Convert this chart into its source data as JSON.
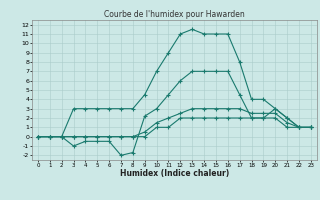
{
  "title": "Courbe de l'humidex pour Hawarden",
  "xlabel": "Humidex (Indice chaleur)",
  "background_color": "#cce8e6",
  "grid_color": "#aaccca",
  "line_color": "#1a7a6e",
  "xlim": [
    -0.5,
    23.5
  ],
  "ylim": [
    -2.5,
    12.5
  ],
  "xticks": [
    0,
    1,
    2,
    3,
    4,
    5,
    6,
    7,
    8,
    9,
    10,
    11,
    12,
    13,
    14,
    15,
    16,
    17,
    18,
    19,
    20,
    21,
    22,
    23
  ],
  "yticks": [
    -2,
    -1,
    0,
    1,
    2,
    3,
    4,
    5,
    6,
    7,
    8,
    9,
    10,
    11,
    12
  ],
  "line1_x": [
    0,
    1,
    2,
    3,
    4,
    5,
    6,
    7,
    8,
    9,
    10,
    11,
    12,
    13,
    14,
    15,
    16,
    17,
    18,
    19,
    20,
    21,
    22,
    23
  ],
  "line1_y": [
    0,
    0,
    0,
    -1,
    -0.5,
    -0.5,
    -0.5,
    -2,
    -1.7,
    2.2,
    3,
    4.5,
    6,
    7,
    7,
    7,
    7,
    4.5,
    2,
    2,
    3,
    2,
    1,
    1
  ],
  "line2_x": [
    0,
    1,
    2,
    3,
    4,
    5,
    6,
    7,
    8,
    9,
    10,
    11,
    12,
    13,
    14,
    15,
    16,
    17,
    18,
    19,
    20,
    21,
    22,
    23
  ],
  "line2_y": [
    0,
    0,
    0,
    3,
    3,
    3,
    3,
    3,
    3,
    4.5,
    7,
    9,
    11,
    11.5,
    11,
    11,
    11,
    8,
    4,
    4,
    3,
    2,
    1,
    1
  ],
  "line3_x": [
    0,
    1,
    2,
    3,
    4,
    5,
    6,
    7,
    8,
    9,
    10,
    11,
    12,
    13,
    14,
    15,
    16,
    17,
    18,
    19,
    20,
    21,
    22,
    23
  ],
  "line3_y": [
    0,
    0,
    0,
    0,
    0,
    0,
    0,
    0,
    0,
    0.5,
    1.5,
    2,
    2.5,
    3,
    3,
    3,
    3,
    3,
    2.5,
    2.5,
    2.5,
    1.5,
    1,
    1
  ],
  "line4_x": [
    0,
    1,
    2,
    3,
    4,
    5,
    6,
    7,
    8,
    9,
    10,
    11,
    12,
    13,
    14,
    15,
    16,
    17,
    18,
    19,
    20,
    21,
    22,
    23
  ],
  "line4_y": [
    0,
    0,
    0,
    0,
    0,
    0,
    0,
    0,
    0,
    0,
    1,
    1,
    2,
    2,
    2,
    2,
    2,
    2,
    2,
    2,
    2,
    1,
    1,
    1
  ]
}
